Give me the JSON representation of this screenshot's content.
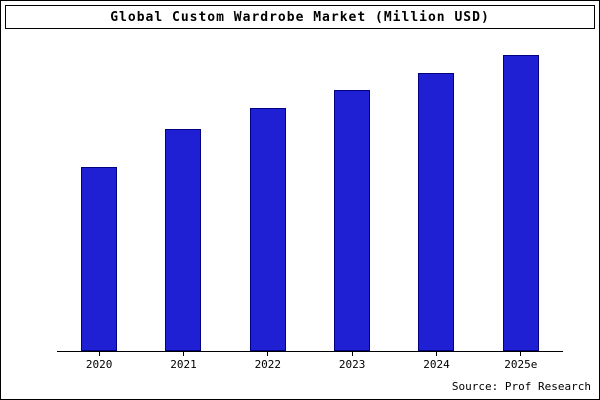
{
  "chart_data": {
    "type": "bar",
    "title": "Global Custom Wardrobe Market (Million USD)",
    "categories": [
      "2020",
      "2021",
      "2022",
      "2023",
      "2024",
      "2025e"
    ],
    "values": [
      62,
      75,
      82,
      88,
      94,
      100
    ],
    "xlabel": "",
    "ylabel": "",
    "ylim": [
      0,
      104
    ],
    "grid": false,
    "legend_position": "none",
    "bar_color": "#1f1fd4",
    "bar_border_color": "#000080"
  },
  "source": {
    "label": "Source: Prof Research"
  }
}
